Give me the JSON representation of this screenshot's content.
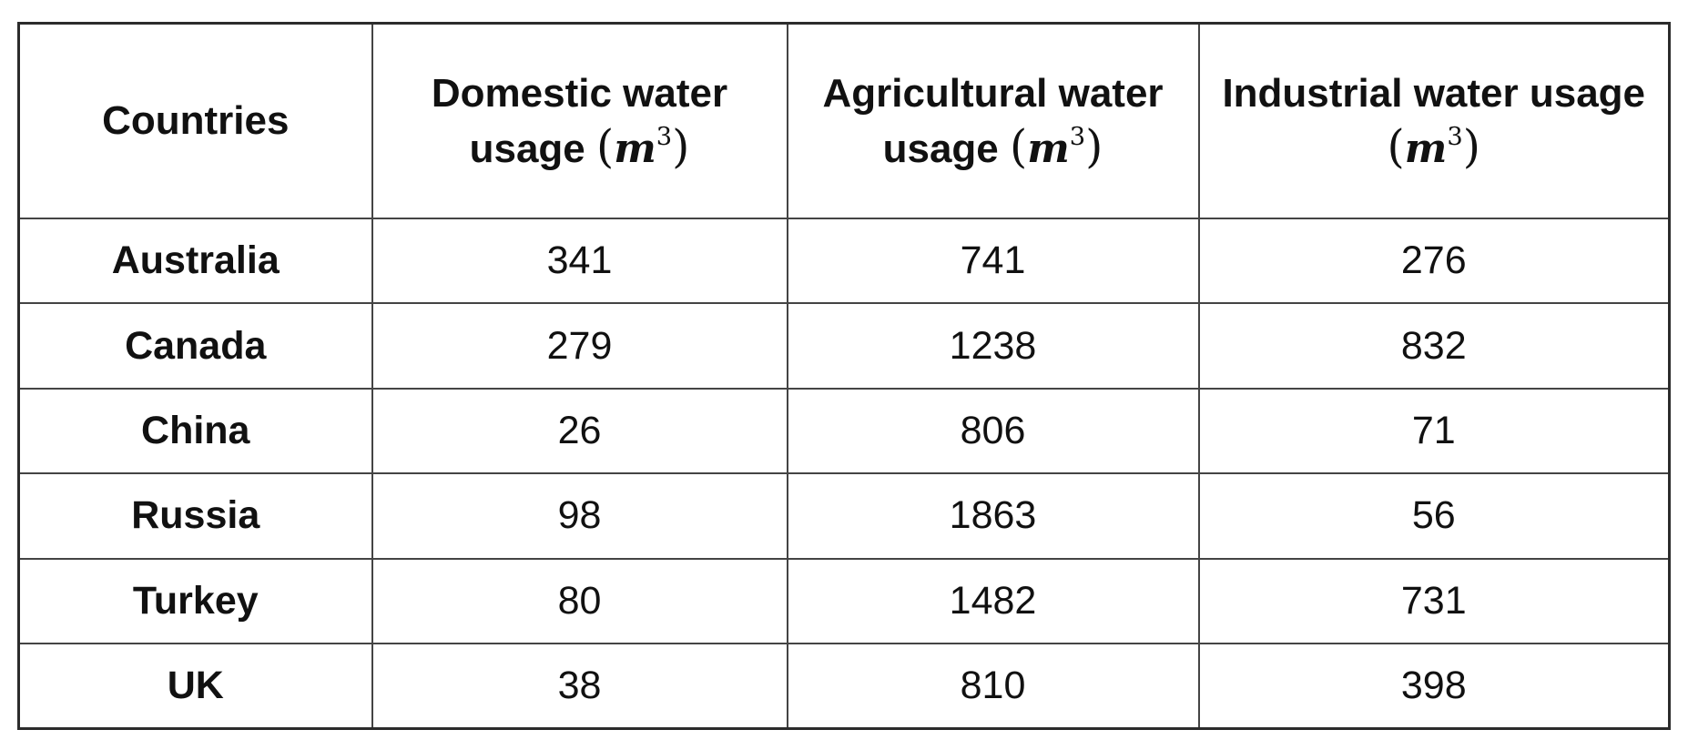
{
  "table": {
    "headers": [
      {
        "text": "Countries",
        "unit": null
      },
      {
        "text": "Domestic water usage",
        "unit": {
          "var": "m",
          "exp": "3"
        }
      },
      {
        "text": "Agricultural water usage",
        "unit": {
          "var": "m",
          "exp": "3"
        }
      },
      {
        "text": "Industrial water usage",
        "unit": {
          "var": "m",
          "exp": "3"
        }
      }
    ],
    "paren_open": "(",
    "paren_close": ")",
    "rows": [
      {
        "country": "Australia",
        "domestic": "341",
        "agricultural": "741",
        "industrial": "276"
      },
      {
        "country": "Canada",
        "domestic": "279",
        "agricultural": "1238",
        "industrial": "832"
      },
      {
        "country": "China",
        "domestic": "26",
        "agricultural": "806",
        "industrial": "71"
      },
      {
        "country": "Russia",
        "domestic": "98",
        "agricultural": "1863",
        "industrial": "56"
      },
      {
        "country": "Turkey",
        "domestic": "80",
        "agricultural": "1482",
        "industrial": "731"
      },
      {
        "country": "UK",
        "domestic": "38",
        "agricultural": "810",
        "industrial": "398"
      }
    ]
  }
}
